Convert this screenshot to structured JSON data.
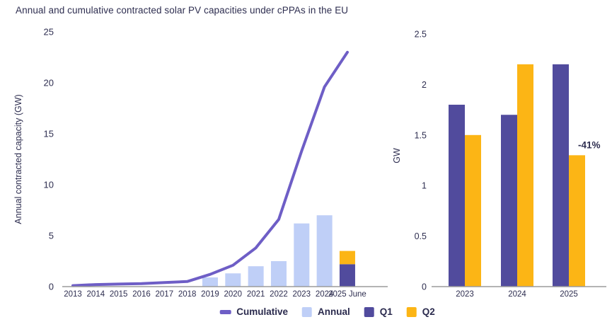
{
  "title": "Annual and cumulative contracted solar PV capacities under cPPAs in the EU",
  "colors": {
    "text": "#2e2e50",
    "cumulative": "#6e5ec6",
    "annual": "#bfcff7",
    "q1": "#514b9d",
    "q2": "#fcb515",
    "axis": "#9b9b9b"
  },
  "legend": {
    "items": [
      {
        "label": "Cumulative",
        "swatch": "line",
        "color_key": "cumulative"
      },
      {
        "label": "Annual",
        "swatch": "square",
        "color_key": "annual"
      },
      {
        "label": "Q1",
        "swatch": "square",
        "color_key": "q1"
      },
      {
        "label": "Q2",
        "swatch": "square",
        "color_key": "q2"
      }
    ]
  },
  "chart_data": [
    {
      "id": "annual-cumulative-eu",
      "type": "line+bar",
      "title": "",
      "xlabel": "",
      "ylabel": "Annual contracted capacity (GW)",
      "ylim": [
        0,
        25
      ],
      "yticks": [
        0,
        5,
        10,
        15,
        20,
        25
      ],
      "grid": false,
      "categories": [
        "2013",
        "2014",
        "2015",
        "2016",
        "2017",
        "2018",
        "2019",
        "2020",
        "2021",
        "2022",
        "2023",
        "2024",
        "2025 June"
      ],
      "series": [
        {
          "name": "Cumulative",
          "type": "line",
          "color_key": "cumulative",
          "values": [
            0.1,
            0.2,
            0.25,
            0.3,
            0.4,
            0.5,
            1.2,
            2.1,
            3.8,
            6.6,
            13.3,
            19.6,
            23.0
          ]
        },
        {
          "name": "Annual",
          "type": "bar",
          "color_key": "annual",
          "values": [
            null,
            null,
            null,
            null,
            null,
            null,
            0.9,
            1.3,
            2.0,
            2.5,
            6.2,
            7.0,
            null
          ]
        },
        {
          "name": "Q1",
          "type": "stacked-bar",
          "color_key": "q1",
          "values": [
            null,
            null,
            null,
            null,
            null,
            null,
            null,
            null,
            null,
            null,
            null,
            null,
            2.2
          ]
        },
        {
          "name": "Q2",
          "type": "stacked-bar",
          "color_key": "q2",
          "values": [
            null,
            null,
            null,
            null,
            null,
            null,
            null,
            null,
            null,
            null,
            null,
            null,
            1.3
          ]
        }
      ]
    },
    {
      "id": "quarterly-gw",
      "type": "bar",
      "title": "",
      "xlabel": "",
      "ylabel": "GW",
      "ylim": [
        0,
        2.5
      ],
      "yticks": [
        0,
        0.5,
        1,
        1.5,
        2,
        2.5
      ],
      "grid": false,
      "categories": [
        "2023",
        "2024",
        "2025"
      ],
      "series": [
        {
          "name": "Q1",
          "color_key": "q1",
          "values": [
            1.8,
            1.7,
            2.2
          ]
        },
        {
          "name": "Q2",
          "color_key": "q2",
          "values": [
            1.5,
            2.2,
            1.3
          ]
        }
      ],
      "annotation": {
        "text": "-41%",
        "category": "2025",
        "series": "Q2"
      }
    }
  ]
}
